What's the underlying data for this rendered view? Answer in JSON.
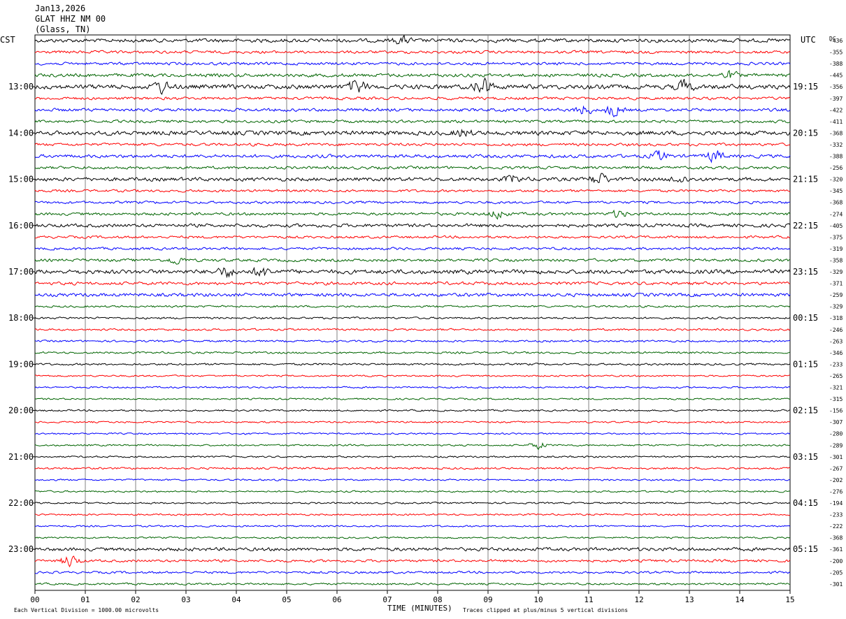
{
  "header": {
    "date": "Jan13,2026",
    "station": "GLAT HHZ NM 00",
    "location": "(Glass, TN)"
  },
  "labels": {
    "left_timezone": "CST",
    "right_timezone": "UTC",
    "dc_label": "DC",
    "xlabel": "TIME (MINUTES)",
    "scale_note": "Each Vertical Division = 1000.00 microvolts",
    "clip_note": "Traces clipped at plus/minus 5 vertical divisions"
  },
  "colors": {
    "cycle": [
      "#000000",
      "#ff0000",
      "#0000ff",
      "#006400"
    ],
    "grid": "#808080"
  },
  "chart_data": {
    "type": "line",
    "title": "",
    "x_ticks": [
      "00",
      "01",
      "02",
      "03",
      "04",
      "05",
      "06",
      "07",
      "08",
      "09",
      "10",
      "11",
      "12",
      "13",
      "14",
      "15"
    ],
    "xlim": [
      0,
      15
    ],
    "trace_count": 48,
    "traces_per_hour": 4,
    "left_hour_labels": [
      "13:00",
      "14:00",
      "15:00",
      "16:00",
      "17:00",
      "18:00",
      "19:00",
      "20:00",
      "21:00",
      "22:00",
      "23:00"
    ],
    "right_hour_labels": [
      "19:15",
      "20:15",
      "21:15",
      "22:15",
      "23:15",
      "00:15",
      "01:15",
      "02:15",
      "03:15",
      "04:15",
      "05:15"
    ],
    "dc_offsets": [
      "-436",
      "-355",
      "-388",
      "-445",
      "-356",
      "-397",
      "-422",
      "-411",
      "-368",
      "-332",
      "-388",
      "-256",
      "-320",
      "-345",
      "-368",
      "-274",
      "-405",
      "-375",
      "-319",
      "-358",
      "-329",
      "-371",
      "-259",
      "-329",
      "-318",
      "-246",
      "-263",
      "-346",
      "-233",
      "-265",
      "-321",
      "-315",
      "-156",
      "-307",
      "-280",
      "-289",
      "-301",
      "-267",
      "-202",
      "-276",
      "-194",
      "-233",
      "-222",
      "-368",
      "-361",
      "-200",
      "-205",
      "-301"
    ],
    "trace_amplitudes": [
      1.3,
      1.0,
      1.0,
      1.2,
      1.6,
      1.0,
      1.1,
      1.0,
      1.5,
      1.0,
      1.2,
      1.0,
      1.3,
      0.9,
      0.9,
      1.0,
      1.2,
      0.9,
      0.9,
      1.0,
      1.5,
      1.1,
      1.2,
      0.7,
      0.7,
      0.7,
      0.7,
      0.7,
      0.7,
      0.6,
      0.6,
      0.6,
      0.6,
      0.6,
      0.6,
      0.6,
      0.6,
      0.7,
      0.6,
      0.6,
      0.6,
      0.6,
      0.6,
      0.6,
      1.2,
      0.9,
      0.8,
      0.7
    ],
    "events": [
      {
        "trace": 0,
        "minute": 7.3,
        "amplitude": 3
      },
      {
        "trace": 3,
        "minute": 13.8,
        "amplitude": 3
      },
      {
        "trace": 4,
        "minute": 2.5,
        "amplitude": 5
      },
      {
        "trace": 4,
        "minute": 6.4,
        "amplitude": 6
      },
      {
        "trace": 4,
        "minute": 8.9,
        "amplitude": 8
      },
      {
        "trace": 4,
        "minute": 12.9,
        "amplitude": 5
      },
      {
        "trace": 6,
        "minute": 10.9,
        "amplitude": 4
      },
      {
        "trace": 6,
        "minute": 11.5,
        "amplitude": 5
      },
      {
        "trace": 8,
        "minute": 8.5,
        "amplitude": 3
      },
      {
        "trace": 10,
        "minute": 12.4,
        "amplitude": 4
      },
      {
        "trace": 10,
        "minute": 13.5,
        "amplitude": 5
      },
      {
        "trace": 12,
        "minute": 9.5,
        "amplitude": 3
      },
      {
        "trace": 12,
        "minute": 11.2,
        "amplitude": 5
      },
      {
        "trace": 12,
        "minute": 12.8,
        "amplitude": 3
      },
      {
        "trace": 15,
        "minute": 9.2,
        "amplitude": 4
      },
      {
        "trace": 15,
        "minute": 11.6,
        "amplitude": 3
      },
      {
        "trace": 19,
        "minute": 2.8,
        "amplitude": 3
      },
      {
        "trace": 20,
        "minute": 3.8,
        "amplitude": 4
      },
      {
        "trace": 20,
        "minute": 4.5,
        "amplitude": 4
      },
      {
        "trace": 35,
        "minute": 10.0,
        "amplitude": 3
      },
      {
        "trace": 45,
        "minute": 0.7,
        "amplitude": 5
      }
    ]
  }
}
